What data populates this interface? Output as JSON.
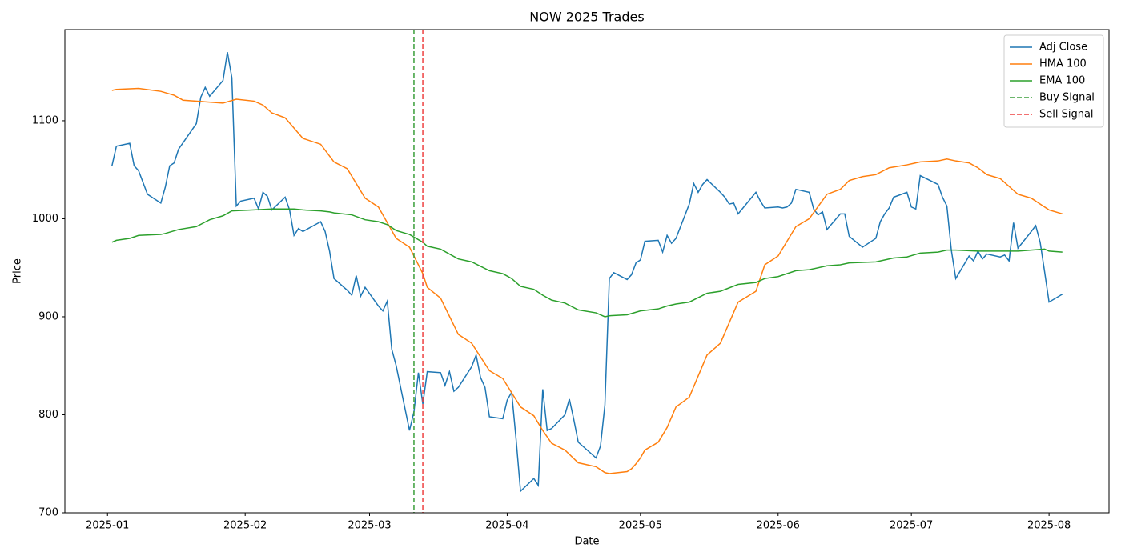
{
  "chart_data": {
    "type": "line",
    "title": "NOW 2025 Trades",
    "x_label": "Date",
    "y_label": "Price",
    "xlim": [
      -9.6,
      225.5
    ],
    "ylim": [
      700,
      1193
    ],
    "xticks": [
      {
        "value": 0,
        "label": "2025-01"
      },
      {
        "value": 31,
        "label": "2025-02"
      },
      {
        "value": 59,
        "label": "2025-03"
      },
      {
        "value": 90,
        "label": "2025-04"
      },
      {
        "value": 120,
        "label": "2025-05"
      },
      {
        "value": 151,
        "label": "2025-06"
      },
      {
        "value": 181,
        "label": "2025-07"
      },
      {
        "value": 212,
        "label": "2025-08"
      }
    ],
    "yticks": [
      700,
      800,
      900,
      1000,
      1100
    ],
    "legend": "upper right",
    "grid": false,
    "series": [
      {
        "name": "Adj Close",
        "color": "#1f77b4",
        "x": [
          1,
          2,
          5,
          6,
          7,
          9,
          12,
          13,
          14,
          15,
          16,
          20,
          21,
          22,
          23,
          26,
          27,
          28,
          29,
          30,
          33,
          34,
          35,
          36,
          37,
          40,
          41,
          42,
          43,
          44,
          48,
          49,
          50,
          51,
          54,
          55,
          56,
          57,
          58,
          61,
          62,
          63,
          64,
          65,
          68,
          69,
          70,
          71,
          72,
          75,
          76,
          77,
          78,
          79,
          82,
          83,
          84,
          85,
          86,
          89,
          90,
          91,
          92,
          93,
          96,
          97,
          98,
          99,
          100,
          103,
          104,
          105,
          106,
          110,
          111,
          112,
          113,
          114,
          117,
          118,
          119,
          120,
          121,
          124,
          125,
          126,
          127,
          128,
          131,
          132,
          133,
          134,
          135,
          138,
          139,
          140,
          141,
          142,
          146,
          147,
          148,
          151,
          152,
          153,
          154,
          155,
          158,
          159,
          160,
          161,
          162,
          165,
          166,
          167,
          170,
          173,
          174,
          175,
          176,
          177,
          180,
          181,
          182,
          183,
          187,
          188,
          189,
          190,
          191,
          194,
          195,
          196,
          197,
          198,
          201,
          202,
          203,
          204,
          205,
          208,
          209,
          210,
          211,
          212,
          215
        ],
        "values": [
          1054,
          1074,
          1077,
          1054,
          1049,
          1025,
          1016,
          1032,
          1054,
          1057,
          1071,
          1097,
          1124,
          1134,
          1125,
          1141,
          1170,
          1144,
          1013,
          1018,
          1021,
          1010,
          1027,
          1023,
          1009,
          1022,
          1009,
          983,
          990,
          987,
          997,
          987,
          967,
          939,
          927,
          922,
          942,
          921,
          930,
          911,
          906,
          916,
          867,
          850,
          784,
          803,
          843,
          811,
          844,
          843,
          830,
          844,
          824,
          828,
          849,
          861,
          838,
          828,
          798,
          796,
          815,
          823,
          775,
          722,
          735,
          728,
          826,
          784,
          786,
          800,
          816,
          795,
          772,
          756,
          768,
          810,
          939,
          945,
          938,
          943,
          955,
          958,
          977,
          978,
          966,
          983,
          975,
          980,
          1015,
          1036,
          1027,
          1035,
          1040,
          1027,
          1022,
          1015,
          1016,
          1005,
          1027,
          1018,
          1011,
          1012,
          1011,
          1012,
          1016,
          1030,
          1027,
          1010,
          1004,
          1007,
          989,
          1005,
          1005,
          982,
          971,
          980,
          997,
          1005,
          1011,
          1022,
          1027,
          1012,
          1010,
          1044,
          1035,
          1022,
          1013,
          968,
          939,
          962,
          957,
          967,
          959,
          964,
          961,
          963,
          957,
          996,
          970,
          987,
          993,
          976,
          946,
          915,
          923
        ]
      },
      {
        "name": "HMA 100",
        "color": "#ff7f0e",
        "x": [
          1,
          2,
          7,
          12,
          15,
          17,
          26,
          29,
          33,
          35,
          37,
          40,
          44,
          48,
          51,
          54,
          58,
          61,
          65,
          68,
          71,
          72,
          75,
          79,
          82,
          86,
          89,
          93,
          96,
          98,
          100,
          103,
          106,
          110,
          112,
          113,
          117,
          118,
          119,
          120,
          121,
          124,
          126,
          128,
          131,
          135,
          138,
          142,
          146,
          148,
          151,
          155,
          158,
          162,
          165,
          167,
          170,
          173,
          176,
          180,
          183,
          187,
          189,
          191,
          194,
          196,
          198,
          201,
          205,
          208,
          212,
          215
        ],
        "values": [
          1131,
          1132,
          1133,
          1130,
          1126,
          1121,
          1118,
          1122,
          1120,
          1116,
          1108,
          1103,
          1082,
          1076,
          1058,
          1051,
          1021,
          1012,
          980,
          971,
          944,
          930,
          919,
          882,
          873,
          845,
          837,
          808,
          799,
          784,
          771,
          764,
          751,
          747,
          741,
          740,
          742,
          745,
          750,
          756,
          764,
          772,
          787,
          808,
          818,
          861,
          873,
          915,
          926,
          953,
          962,
          992,
          1000,
          1025,
          1030,
          1039,
          1043,
          1045,
          1052,
          1055,
          1058,
          1059,
          1061,
          1059,
          1057,
          1052,
          1045,
          1041,
          1025,
          1021,
          1009,
          1005
        ]
      },
      {
        "name": "EMA 100",
        "color": "#2ca02c",
        "x": [
          1,
          2,
          5,
          7,
          12,
          13,
          16,
          20,
          23,
          26,
          28,
          33,
          37,
          42,
          44,
          48,
          50,
          51,
          55,
          58,
          61,
          63,
          65,
          68,
          71,
          72,
          75,
          79,
          82,
          86,
          89,
          91,
          93,
          96,
          98,
          100,
          103,
          106,
          110,
          112,
          113,
          117,
          120,
          124,
          126,
          128,
          131,
          135,
          138,
          142,
          146,
          148,
          151,
          155,
          158,
          162,
          165,
          167,
          173,
          177,
          180,
          183,
          187,
          189,
          191,
          196,
          201,
          205,
          208,
          211,
          212,
          215
        ],
        "values": [
          976,
          978,
          980,
          983,
          984,
          985,
          989,
          992,
          999,
          1003,
          1008,
          1009,
          1010,
          1010,
          1009,
          1008,
          1007,
          1006,
          1004,
          999,
          997,
          994,
          988,
          984,
          976,
          972,
          969,
          959,
          956,
          947,
          944,
          939,
          931,
          928,
          922,
          917,
          914,
          907,
          904,
          900,
          901,
          902,
          906,
          908,
          911,
          913,
          915,
          924,
          926,
          933,
          935,
          939,
          941,
          947,
          948,
          952,
          953,
          955,
          956,
          960,
          961,
          965,
          966,
          968,
          968,
          967,
          967,
          967,
          968,
          969,
          967,
          966
        ]
      }
    ],
    "signals": [
      {
        "name": "Buy Signal",
        "x": 69,
        "color": "#3a9e3a"
      },
      {
        "name": "Sell Signal",
        "x": 71,
        "color": "#ee4040"
      }
    ]
  }
}
